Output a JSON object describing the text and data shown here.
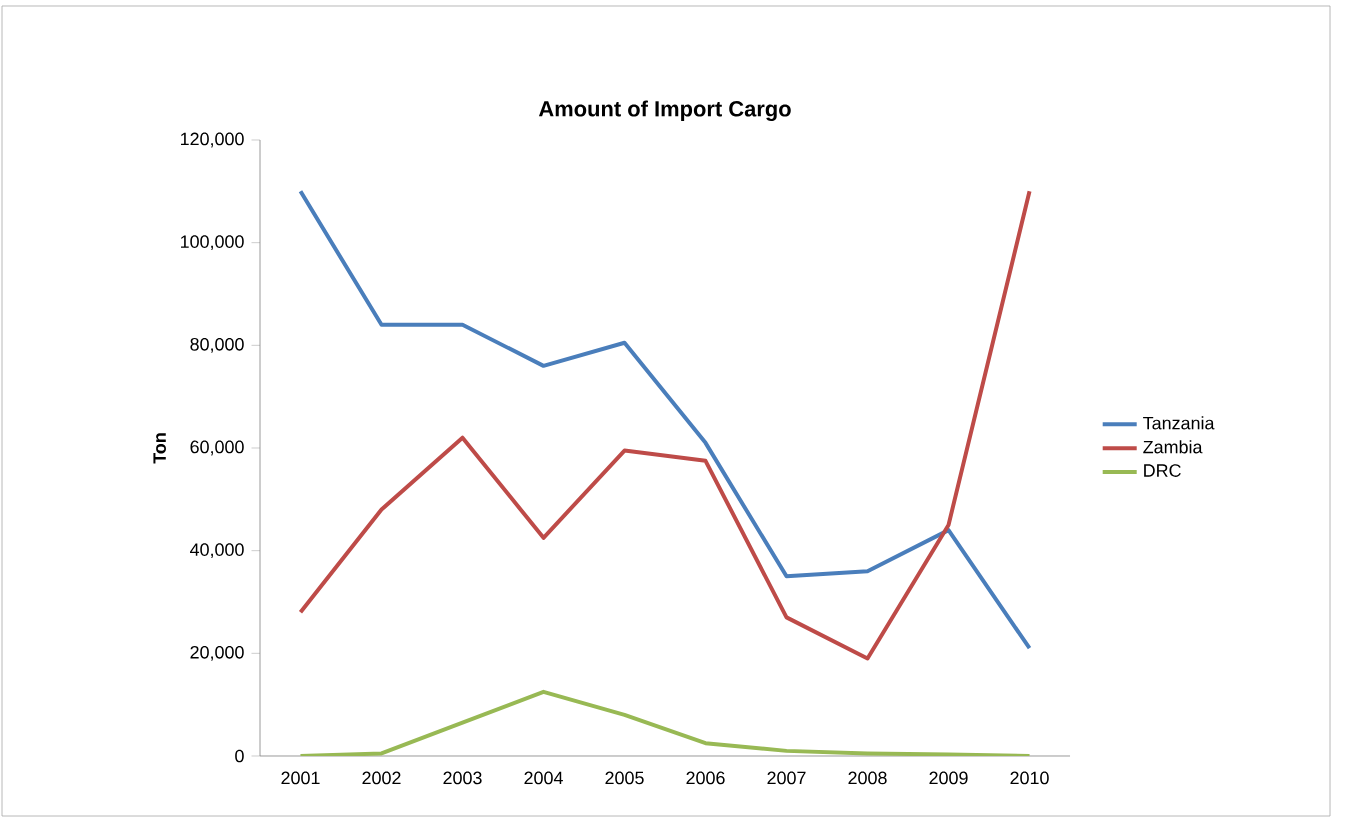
{
  "chart_data": {
    "type": "line",
    "title": "Amount of Import Cargo",
    "ylabel": "Ton",
    "categories": [
      "2001",
      "2002",
      "2003",
      "2004",
      "2005",
      "2006",
      "2007",
      "2008",
      "2009",
      "2010"
    ],
    "series": [
      {
        "name": "Tanzania",
        "color": "#4a7ebb",
        "values": [
          110000,
          84000,
          84000,
          76000,
          80500,
          61000,
          35000,
          36000,
          44000,
          21000
        ]
      },
      {
        "name": "Zambia",
        "color": "#be4b48",
        "values": [
          28000,
          48000,
          62000,
          42500,
          59500,
          57500,
          27000,
          19000,
          45000,
          110000
        ]
      },
      {
        "name": "DRC",
        "color": "#98b954",
        "values": [
          0,
          500,
          6500,
          12500,
          8000,
          2500,
          1000,
          500,
          300,
          0
        ]
      }
    ],
    "ylim": [
      0,
      120000
    ],
    "yticks": [
      {
        "value": 0,
        "label": "0"
      },
      {
        "value": 20000,
        "label": "20,000"
      },
      {
        "value": 40000,
        "label": "40,000"
      },
      {
        "value": 60000,
        "label": "60,000"
      },
      {
        "value": 80000,
        "label": "80,000"
      },
      {
        "value": 100000,
        "label": "100,000"
      },
      {
        "value": 120000,
        "label": "120,000"
      }
    ],
    "grid": false,
    "legend": "right",
    "marker": "none",
    "line_style": "solid"
  }
}
